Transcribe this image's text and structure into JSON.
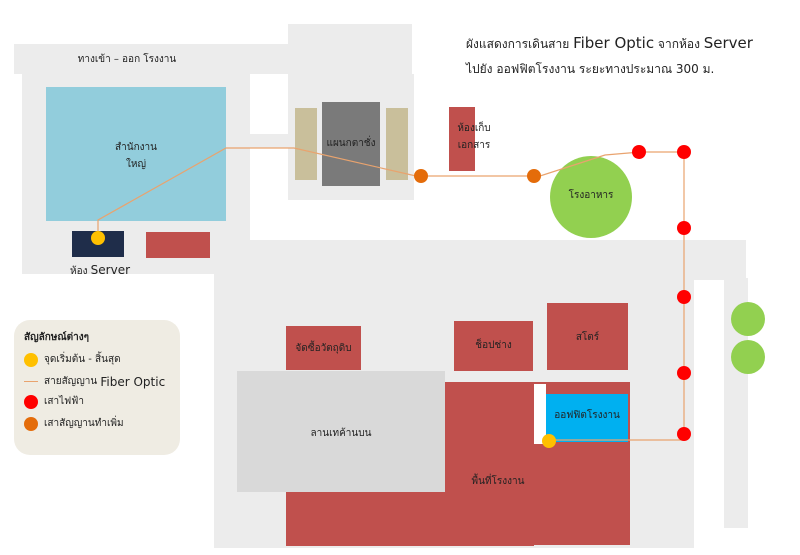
{
  "title": {
    "line1_prefix": "ผังแสดงการเดินสาย",
    "line1_fiber": "Fiber Optic",
    "line1_mid": "จากห้อง",
    "line1_server": "Server",
    "line2": "ไปยัง ออฟฟิตโรงงาน ระยะทางประมาณ 300 ม."
  },
  "labels": {
    "entrance": "ทางเข้า – ออก โรงงาน",
    "headquarters_1": "สำนักงาน",
    "headquarters_2": "ใหญ่",
    "server_room_prefix": "ห้อง",
    "server_room": "Server",
    "weighing": "แผนกตาชั่ง",
    "documents_1": "ห้องเก็บ",
    "documents_2": "เอกสาร",
    "canteen": "โรงอาหาร",
    "raw_material": "จัดซื้อวัตถุดิบ",
    "repair_shop": "ช็อปช่าง",
    "store": "สโตร์",
    "factory_office": "ออฟฟิตโรงงาน",
    "upper_yard": "ลานเทค้านบน",
    "factory_floor": "พื้นที่โรงงาน"
  },
  "legend": {
    "title": "สัญลักษณ์ต่างๆ",
    "start_end": "จุดเริ่มต้น - สิ้นสุด",
    "fiber_prefix": "สายสัญญาน",
    "fiber_name": "Fiber Optic",
    "power_pole": "เสาไฟฟ้า",
    "extra_pole": "เสาสัญญานทำเพิ่ม"
  },
  "colors": {
    "headquarters": "#92cddc",
    "server_room": "#1f2d4a",
    "brick": "#c0504d",
    "weighing_side": "#c9bf9b",
    "weighing": "#7a7a7a",
    "canteen": "#92d050",
    "office": "#00b0f0",
    "yard": "#d9d9d9",
    "road": "#ececec",
    "fiber": "#e9a36e",
    "endpoint": "#ffc000",
    "power_pole": "#ff0000",
    "extra_pole": "#e46c0a",
    "legend_bg": "#efece3"
  }
}
